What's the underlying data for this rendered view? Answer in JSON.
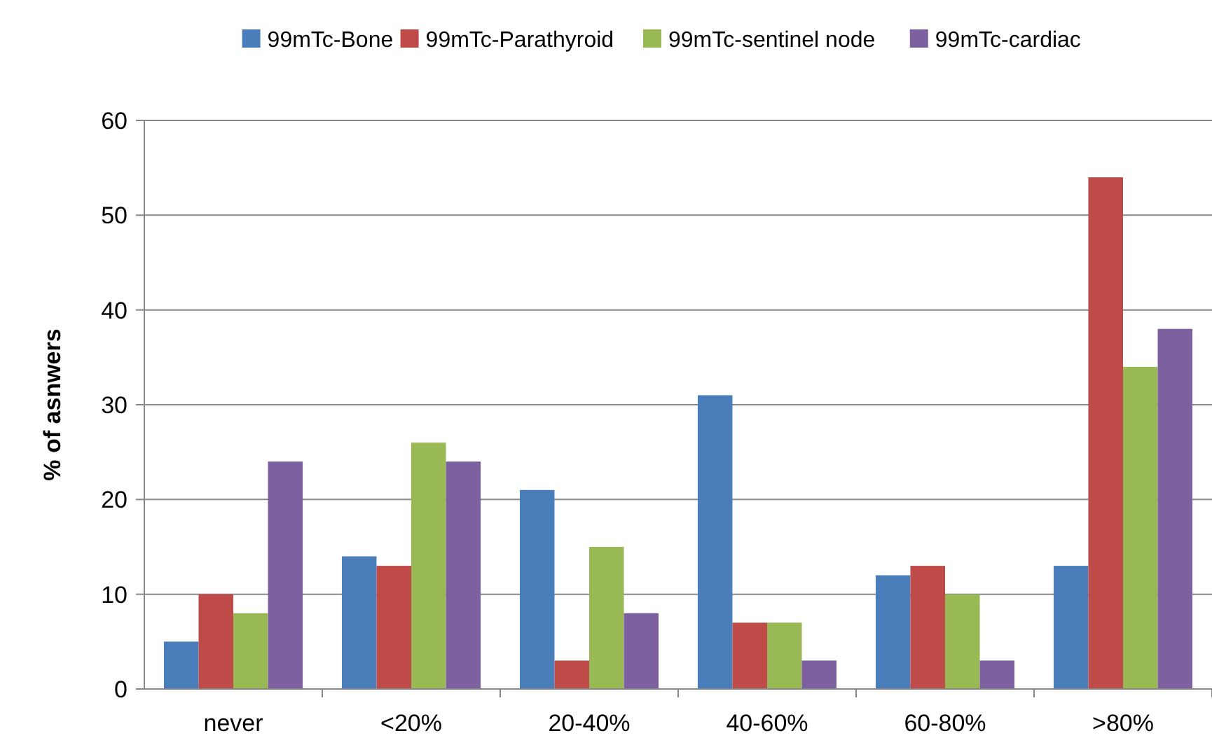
{
  "chart_data": {
    "type": "bar",
    "ylabel": "% of asnwers",
    "categories": [
      "never",
      "<20%",
      "20-40%",
      "40-60%",
      "60-80%",
      ">80%"
    ],
    "series": [
      {
        "name": "99mTc-Bone",
        "color": "#4a7ebb",
        "values": [
          5,
          14,
          21,
          31,
          12,
          13
        ]
      },
      {
        "name": "99mTc-Parathyroid",
        "color": "#be4b48",
        "values": [
          10,
          13,
          3,
          7,
          13,
          54
        ]
      },
      {
        "name": "99mTc-sentinel node",
        "color": "#98b954",
        "values": [
          8,
          26,
          15,
          7,
          10,
          34
        ]
      },
      {
        "name": "99mTc-cardiac",
        "color": "#7d60a0",
        "values": [
          24,
          24,
          8,
          3,
          3,
          38
        ]
      }
    ],
    "ylim": [
      0,
      60
    ],
    "yticks": [
      0,
      10,
      20,
      30,
      40,
      50,
      60
    ],
    "grid": "y",
    "legend": "top"
  }
}
